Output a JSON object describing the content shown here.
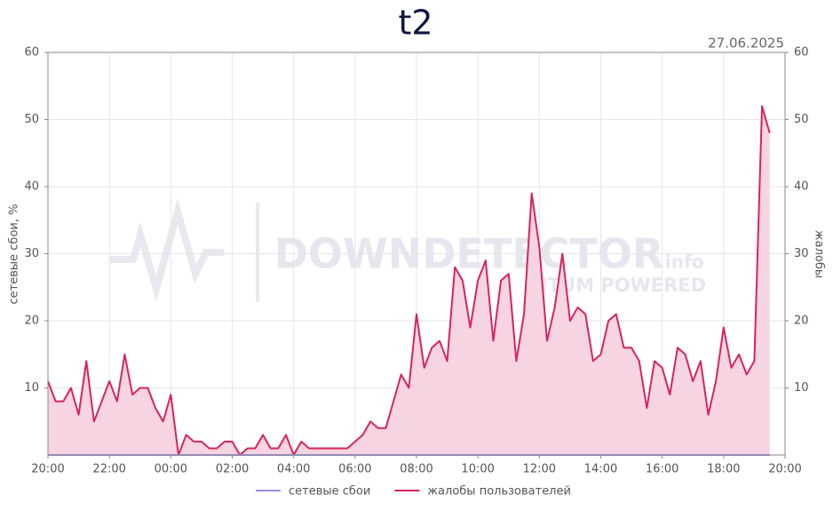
{
  "chart_data": {
    "type": "line",
    "title": "t2",
    "annotation": "27.06.2025",
    "watermark": [
      "DOWNDETECTOR",
      ".info",
      "ITUM POWERED"
    ],
    "y_label": "сетевые сбои, %",
    "y2_label": "жалобы",
    "categories": [
      "20:00",
      null,
      null,
      null,
      null,
      null,
      null,
      null,
      "22:00",
      null,
      null,
      null,
      null,
      null,
      null,
      null,
      "00:00",
      null,
      null,
      null,
      null,
      null,
      null,
      null,
      "02:00",
      null,
      null,
      null,
      null,
      null,
      null,
      null,
      "04:00",
      null,
      null,
      null,
      null,
      null,
      null,
      null,
      "06:00",
      null,
      null,
      null,
      null,
      null,
      null,
      null,
      "08:00",
      null,
      null,
      null,
      null,
      null,
      null,
      null,
      "10:00",
      null,
      null,
      null,
      null,
      null,
      null,
      null,
      "12:00",
      null,
      null,
      null,
      null,
      null,
      null,
      null,
      "14:00",
      null,
      null,
      null,
      null,
      null,
      null,
      null,
      "16:00",
      null,
      null,
      null,
      null,
      null,
      null,
      null,
      "18:00",
      null,
      null,
      null,
      null,
      null,
      null,
      null,
      "20:00"
    ],
    "ylim": [
      0,
      60
    ],
    "yticks": [
      10,
      20,
      30,
      40,
      50,
      60
    ],
    "y2lim": [
      0,
      60
    ],
    "y2ticks": [
      10,
      20,
      30,
      40,
      50,
      60
    ],
    "grid": true,
    "legend": "bottom",
    "series": [
      {
        "name": "сетевые сбои",
        "color": "#9b8fe0",
        "values": [
          0,
          0,
          0,
          0,
          0,
          0,
          0,
          0,
          0,
          0,
          0,
          0,
          0,
          0,
          0,
          0,
          0,
          0,
          0,
          0,
          0,
          0,
          0,
          0,
          0,
          0,
          0,
          0,
          0,
          0,
          0,
          0,
          0,
          0,
          0,
          0,
          0,
          0,
          0,
          0,
          0,
          0,
          0,
          0,
          0,
          0,
          0,
          0,
          0,
          0,
          0,
          0,
          0,
          0,
          0,
          0,
          0,
          0,
          0,
          0,
          0,
          0,
          0,
          0,
          0,
          0,
          0,
          0,
          0,
          0,
          0,
          0,
          0,
          0,
          0,
          0,
          0,
          0,
          0,
          0,
          0,
          0,
          0,
          0,
          0,
          0,
          0,
          0,
          0,
          0,
          0,
          0,
          0,
          0,
          0,
          null,
          null
        ]
      },
      {
        "name": "жалобы пользователей",
        "color": "#d6245f",
        "fill": "#f7d4e1",
        "axis": "y2",
        "values": [
          11,
          8,
          8,
          10,
          6,
          14,
          5,
          8,
          11,
          8,
          15,
          9,
          10,
          10,
          7,
          5,
          9,
          0,
          3,
          2,
          2,
          1,
          1,
          2,
          2,
          0,
          1,
          1,
          3,
          1,
          1,
          3,
          0,
          2,
          1,
          1,
          1,
          1,
          1,
          1,
          2,
          3,
          5,
          4,
          4,
          8,
          12,
          10,
          21,
          13,
          16,
          17,
          14,
          28,
          26,
          19,
          26,
          29,
          17,
          26,
          27,
          14,
          21,
          39,
          31,
          17,
          22,
          30,
          20,
          22,
          21,
          14,
          15,
          20,
          21,
          16,
          16,
          14,
          7,
          14,
          13,
          9,
          16,
          15,
          11,
          14,
          6,
          11,
          19,
          13,
          15,
          12,
          14,
          52,
          48,
          null,
          null
        ]
      }
    ]
  }
}
